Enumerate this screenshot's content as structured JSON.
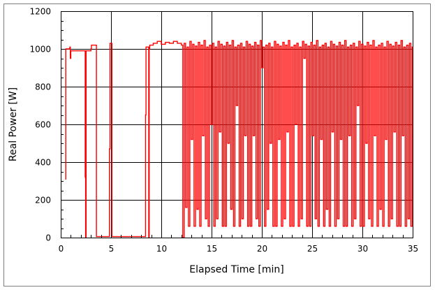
{
  "chart_data": {
    "type": "line",
    "title": "",
    "xlabel": "Elapsed Time [min]",
    "ylabel": "Real Power [W]",
    "xlim": [
      0,
      35
    ],
    "ylim": [
      0,
      1200
    ],
    "xticks": [
      0,
      5,
      10,
      15,
      20,
      25,
      30,
      35
    ],
    "yticks": [
      0,
      200,
      400,
      600,
      800,
      1000,
      1200
    ],
    "xtick_labels": [
      "0",
      "5",
      "10",
      "15",
      "20",
      "25",
      "30",
      "35"
    ],
    "ytick_labels": [
      "0",
      "200",
      "400",
      "600",
      "800",
      "1000",
      "1200"
    ],
    "grid": true,
    "legend": "none",
    "line_style": "step",
    "colors": {
      "series": "#ff0000",
      "grid": "#000000",
      "frame": "#808080"
    },
    "series": [
      {
        "x": [
          0.45,
          0.5,
          0.9,
          0.95,
          1.0,
          2.4,
          2.43,
          2.47,
          2.52,
          3.0,
          3.05,
          3.55,
          4.84,
          4.9,
          5.09,
          8.43,
          8.48,
          8.75,
          8.8,
          8.85,
          9.2,
          9.6,
          10.0,
          10.4,
          10.8,
          11.2,
          11.6,
          12.0,
          12.14,
          12.28,
          12.42,
          12.56,
          12.7,
          12.84,
          12.98,
          13.12,
          13.26,
          13.4,
          13.54,
          13.68,
          13.82,
          13.96,
          14.1,
          14.24,
          14.38,
          14.52,
          14.66,
          14.8,
          14.94,
          15.08,
          15.22,
          15.36,
          15.5,
          15.64,
          15.78,
          15.92,
          16.06,
          16.2,
          16.34,
          16.48,
          16.62,
          16.76,
          16.9,
          17.04,
          17.18,
          17.32,
          17.46,
          17.6,
          17.74,
          17.88,
          18.02,
          18.16,
          18.3,
          18.44,
          18.58,
          18.72,
          18.86,
          19.0,
          19.14,
          19.28,
          19.42,
          19.56,
          19.7,
          19.84,
          19.98,
          20.12,
          20.26,
          20.4,
          20.54,
          20.68,
          20.82,
          20.96,
          21.1,
          21.24,
          21.38,
          21.52,
          21.66,
          21.8,
          21.94,
          22.08,
          22.22,
          22.36,
          22.5,
          22.64,
          22.78,
          22.92,
          23.06,
          23.2,
          23.34,
          23.48,
          23.62,
          23.76,
          23.9,
          24.04,
          24.18,
          24.32,
          24.46,
          24.6,
          24.74,
          24.88,
          25.02,
          25.16,
          25.3,
          25.44,
          25.58,
          25.72,
          25.86,
          26.0,
          26.14,
          26.28,
          26.42,
          26.56,
          26.7,
          26.84,
          26.98,
          27.12,
          27.26,
          27.4,
          27.54,
          27.68,
          27.82,
          27.96,
          28.1,
          28.24,
          28.38,
          28.52,
          28.66,
          28.8,
          28.94,
          29.08,
          29.22,
          29.36,
          29.5,
          29.64,
          29.78,
          29.92,
          30.06,
          30.2,
          30.34,
          30.48,
          30.62,
          30.76,
          30.9,
          31.04,
          31.18,
          31.32,
          31.46,
          31.6,
          31.74,
          31.88,
          32.02,
          32.16,
          32.3,
          32.44,
          32.58,
          32.72,
          32.86,
          33.0,
          33.14,
          33.28,
          33.42,
          33.56,
          33.7,
          33.84,
          33.98,
          34.12,
          34.26,
          34.4,
          34.54,
          34.68,
          34.82,
          34.96,
          35.0
        ],
        "y": [
          310,
          1000,
          1010,
          950,
          990,
          990,
          320,
          0,
          990,
          1000,
          1020,
          5,
          470,
          1030,
          5,
          650,
          1010,
          0,
          1000,
          1020,
          1030,
          1040,
          1025,
          1035,
          1030,
          1040,
          1030,
          1020,
          0,
          1030,
          160,
          1010,
          60,
          1040,
          520,
          1025,
          60,
          1015,
          150,
          1035,
          60,
          1020,
          540,
          1045,
          100,
          1010,
          60,
          1020,
          600,
          1030,
          60,
          1010,
          100,
          1040,
          560,
          1025,
          60,
          1015,
          60,
          1035,
          500,
          1020,
          150,
          1045,
          60,
          1010,
          700,
          1020,
          60,
          1030,
          100,
          1010,
          540,
          1040,
          60,
          1025,
          60,
          1015,
          540,
          1035,
          100,
          1020,
          60,
          1045,
          900,
          1010,
          60,
          1020,
          150,
          1030,
          500,
          1010,
          60,
          1040,
          60,
          1025,
          520,
          1015,
          60,
          1035,
          100,
          1020,
          560,
          1045,
          60,
          1010,
          60,
          1020,
          600,
          1030,
          60,
          1010,
          100,
          1040,
          950,
          1025,
          60,
          1015,
          60,
          1035,
          540,
          1020,
          100,
          1045,
          60,
          1010,
          520,
          1020,
          60,
          1030,
          150,
          1010,
          60,
          1040,
          560,
          1025,
          60,
          1015,
          100,
          1035,
          520,
          1020,
          60,
          1045,
          60,
          1010,
          540,
          1020,
          60,
          1030,
          100,
          1010,
          700,
          1040,
          60,
          1025,
          60,
          1015,
          500,
          1035,
          100,
          1020,
          60,
          1045,
          540,
          1010,
          60,
          1020,
          150,
          1030,
          60,
          1010,
          520,
          1040,
          60,
          1025,
          100,
          1015,
          560,
          1035,
          60,
          1020,
          60,
          1045,
          540,
          1010,
          60,
          1020,
          100,
          1030,
          60,
          1010,
          600
        ]
      }
    ]
  }
}
